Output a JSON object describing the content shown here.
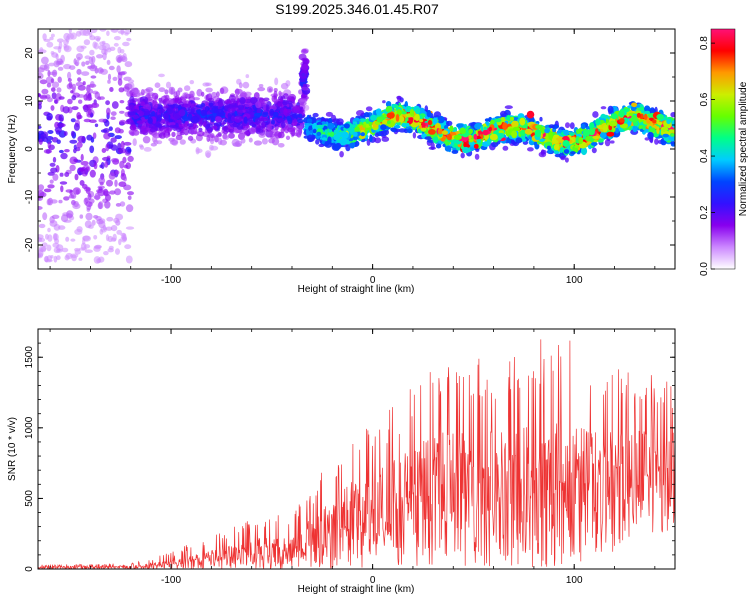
{
  "title": "S199.2025.346.01.45.R07",
  "chart_data": [
    {
      "type": "heatmap",
      "name": "spectrogram",
      "xlabel": "Height of straight line (km)",
      "ylabel": "Frequency (Hz)",
      "xlim": [
        -166,
        150
      ],
      "ylim": [
        -25,
        25
      ],
      "xticks": [
        -100,
        0,
        100
      ],
      "xtick_labels": [
        "-100",
        "0",
        "100"
      ],
      "yticks": [
        -20,
        -10,
        0,
        10,
        20
      ],
      "ytick_labels": [
        "-20",
        "-10",
        "0",
        "10",
        "20"
      ],
      "colorbar": {
        "label": "Normalized spectral amplitude",
        "range": [
          0.0,
          0.85
        ],
        "ticks": [
          0.0,
          0.2,
          0.4,
          0.6,
          0.8
        ],
        "tick_labels": [
          "0.0",
          "0.2",
          "0.4",
          "0.6",
          "0.8"
        ],
        "colormap": [
          "#ffffff",
          "#cc88ff",
          "#8800ee",
          "#3311ff",
          "#0044ff",
          "#00ccff",
          "#00ff88",
          "#66ff00",
          "#ccee00",
          "#ff9900",
          "#ff0000",
          "#ff1177"
        ]
      },
      "ridge_segments": [
        {
          "x_range": [
            -166,
            -120
          ],
          "center_hz": 2,
          "spread_hz": 22,
          "max_amp": 0.22,
          "density": "sparse-scattered"
        },
        {
          "x_range": [
            -120,
            -35
          ],
          "center_hz": 7,
          "spread_hz": 8,
          "max_amp": 0.25,
          "density": "medium"
        },
        {
          "x_range": [
            -35,
            -33
          ],
          "center_hz": 15,
          "spread_hz": 8,
          "max_amp": 0.28,
          "density": "vertical streak"
        },
        {
          "x_range": [
            -33,
            150
          ],
          "center_hz": 4,
          "spread_hz": 4,
          "max_amp": 0.82,
          "density": "dense ridge"
        }
      ]
    },
    {
      "type": "line",
      "name": "snr",
      "xlabel": "Height of straight line (km)",
      "ylabel": "SNR (10 * v/v)",
      "xlim": [
        -166,
        150
      ],
      "ylim": [
        0,
        1700
      ],
      "xticks": [
        -100,
        0,
        100
      ],
      "xtick_labels": [
        "-100",
        "0",
        "100"
      ],
      "yticks": [
        0,
        500,
        1000,
        1500
      ],
      "ytick_labels": [
        "0",
        "500",
        "1000",
        "1500"
      ],
      "color": "#ee3333",
      "envelope": {
        "x": [
          -166,
          -120,
          -100,
          -80,
          -60,
          -40,
          -30,
          -10,
          0,
          10,
          20,
          30,
          50,
          70,
          90,
          110,
          130,
          150
        ],
        "mean": [
          15,
          15,
          30,
          90,
          130,
          170,
          230,
          420,
          500,
          560,
          620,
          700,
          720,
          720,
          720,
          730,
          760,
          780
        ],
        "peak": [
          30,
          40,
          120,
          250,
          350,
          420,
          600,
          1000,
          1000,
          1150,
          1300,
          1450,
          1500,
          1500,
          1700,
          1500,
          1400,
          1350
        ]
      }
    }
  ]
}
